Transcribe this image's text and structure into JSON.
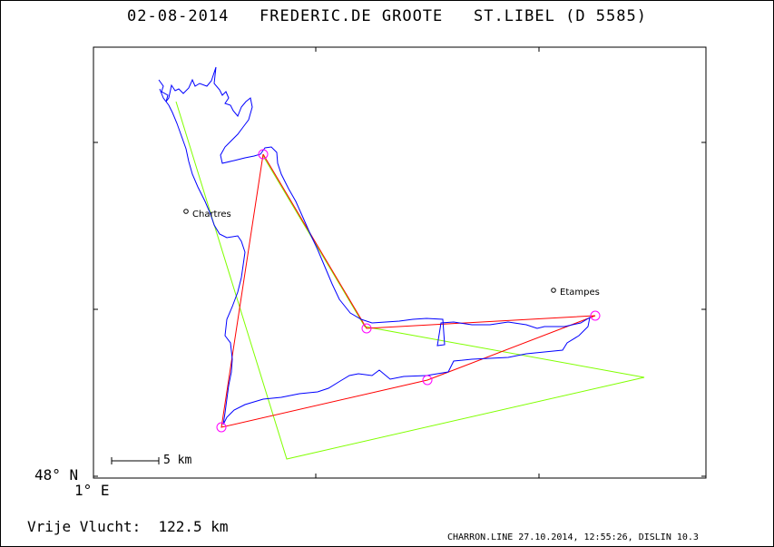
{
  "title": "02-08-2014   FREDERIC.DE GROOTE   ST.LIBEL (D 5585)",
  "axes": {
    "lat_label": "48° N",
    "lon_label": "1° E"
  },
  "scale": {
    "label": "5 km"
  },
  "cities": [
    {
      "name": "Chartres"
    },
    {
      "name": "Etampes"
    }
  ],
  "result": {
    "label": "Vrije Vlucht:",
    "value": "122.5 km"
  },
  "footer": "CHARRON.LINE 27.10.2014, 12:55:26, DISLIN 10.3",
  "colors": {
    "track": "#0000ff",
    "task": "#ff0000",
    "optimized": "#80ff00",
    "turnpoint": "#ff00ff"
  }
}
